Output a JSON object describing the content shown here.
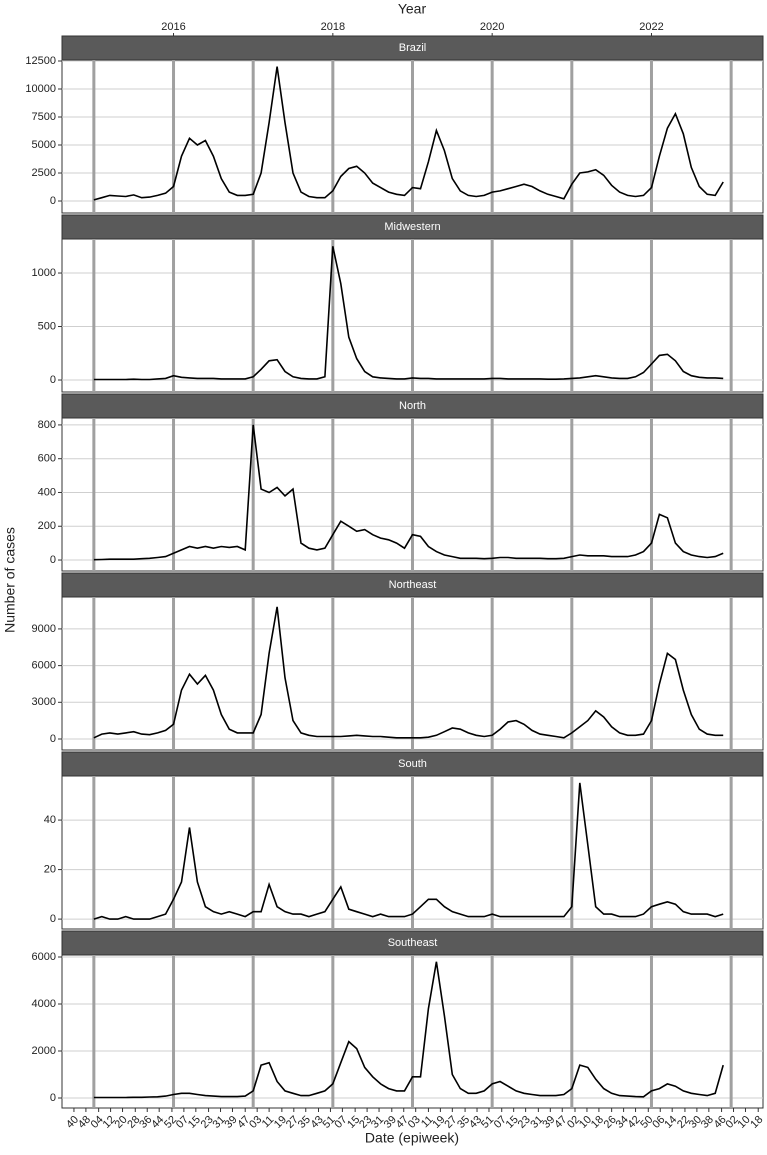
{
  "chart_data": {
    "type": "line",
    "facets": true,
    "top_axis_title": "Year",
    "x_label": "Date (epiweek)",
    "y_label": "Number of cases",
    "x": [
      2015,
      2015.1,
      2015.2,
      2015.3,
      2015.4,
      2015.5,
      2015.6,
      2015.7,
      2015.8,
      2015.9,
      2016,
      2016.1,
      2016.2,
      2016.3,
      2016.4,
      2016.5,
      2016.6,
      2016.7,
      2016.8,
      2016.9,
      2017,
      2017.1,
      2017.2,
      2017.3,
      2017.4,
      2017.5,
      2017.6,
      2017.7,
      2017.8,
      2017.9,
      2018,
      2018.1,
      2018.2,
      2018.3,
      2018.4,
      2018.5,
      2018.6,
      2018.7,
      2018.8,
      2018.9,
      2019,
      2019.1,
      2019.2,
      2019.3,
      2019.4,
      2019.5,
      2019.6,
      2019.7,
      2019.8,
      2019.9,
      2020,
      2020.1,
      2020.2,
      2020.3,
      2020.4,
      2020.5,
      2020.6,
      2020.7,
      2020.8,
      2020.9,
      2021,
      2021.1,
      2021.2,
      2021.3,
      2021.4,
      2021.5,
      2021.6,
      2021.7,
      2021.8,
      2021.9,
      2022,
      2022.1,
      2022.2,
      2022.3,
      2022.4,
      2022.5,
      2022.6,
      2022.7,
      2022.8,
      2022.9
    ],
    "xlim": [
      2014.6,
      2023.4
    ],
    "year_lines": [
      2015,
      2016,
      2017,
      2018,
      2019,
      2020,
      2021,
      2022,
      2023
    ],
    "top_xticks": [
      2016,
      2018,
      2020,
      2022
    ],
    "xticks": [
      {
        "value": 2014.75,
        "label": "40"
      },
      {
        "value": 2014.9,
        "label": "48"
      },
      {
        "value": 2015.06,
        "label": "04"
      },
      {
        "value": 2015.21,
        "label": "12"
      },
      {
        "value": 2015.36,
        "label": "20"
      },
      {
        "value": 2015.52,
        "label": "28"
      },
      {
        "value": 2015.67,
        "label": "36"
      },
      {
        "value": 2015.82,
        "label": "44"
      },
      {
        "value": 2015.98,
        "label": "52"
      },
      {
        "value": 2016.13,
        "label": "07"
      },
      {
        "value": 2016.28,
        "label": "15"
      },
      {
        "value": 2016.44,
        "label": "23"
      },
      {
        "value": 2016.59,
        "label": "31"
      },
      {
        "value": 2016.74,
        "label": "39"
      },
      {
        "value": 2016.9,
        "label": "47"
      },
      {
        "value": 2017.05,
        "label": "03"
      },
      {
        "value": 2017.2,
        "label": "11"
      },
      {
        "value": 2017.36,
        "label": "19"
      },
      {
        "value": 2017.51,
        "label": "27"
      },
      {
        "value": 2017.66,
        "label": "35"
      },
      {
        "value": 2017.82,
        "label": "43"
      },
      {
        "value": 2017.97,
        "label": "51"
      },
      {
        "value": 2018.12,
        "label": "07"
      },
      {
        "value": 2018.28,
        "label": "15"
      },
      {
        "value": 2018.43,
        "label": "23"
      },
      {
        "value": 2018.58,
        "label": "31"
      },
      {
        "value": 2018.74,
        "label": "39"
      },
      {
        "value": 2018.89,
        "label": "47"
      },
      {
        "value": 2019.04,
        "label": "03"
      },
      {
        "value": 2019.2,
        "label": "11"
      },
      {
        "value": 2019.35,
        "label": "19"
      },
      {
        "value": 2019.5,
        "label": "27"
      },
      {
        "value": 2019.66,
        "label": "35"
      },
      {
        "value": 2019.81,
        "label": "43"
      },
      {
        "value": 2019.96,
        "label": "51"
      },
      {
        "value": 2020.12,
        "label": "07"
      },
      {
        "value": 2020.27,
        "label": "15"
      },
      {
        "value": 2020.42,
        "label": "23"
      },
      {
        "value": 2020.58,
        "label": "31"
      },
      {
        "value": 2020.73,
        "label": "39"
      },
      {
        "value": 2020.88,
        "label": "47"
      },
      {
        "value": 2021.04,
        "label": "02"
      },
      {
        "value": 2021.19,
        "label": "10"
      },
      {
        "value": 2021.34,
        "label": "18"
      },
      {
        "value": 2021.5,
        "label": "26"
      },
      {
        "value": 2021.65,
        "label": "34"
      },
      {
        "value": 2021.8,
        "label": "42"
      },
      {
        "value": 2021.96,
        "label": "50"
      },
      {
        "value": 2022.11,
        "label": "06"
      },
      {
        "value": 2022.26,
        "label": "14"
      },
      {
        "value": 2022.42,
        "label": "22"
      },
      {
        "value": 2022.57,
        "label": "30"
      },
      {
        "value": 2022.72,
        "label": "38"
      },
      {
        "value": 2022.88,
        "label": "46"
      },
      {
        "value": 2023.03,
        "label": "02"
      },
      {
        "value": 2023.18,
        "label": "10"
      },
      {
        "value": 2023.34,
        "label": "18"
      }
    ],
    "series": [
      {
        "name": "Brazil",
        "color": "#000000",
        "ylim": [
          -1070,
          12590
        ],
        "yticks": [
          0,
          2500,
          5000,
          7500,
          10000,
          12500
        ],
        "values": [
          100,
          300,
          500,
          450,
          400,
          550,
          300,
          350,
          500,
          700,
          1300,
          4000,
          5600,
          5000,
          5400,
          4000,
          2000,
          800,
          500,
          500,
          600,
          2500,
          7000,
          12000,
          7000,
          2500,
          800,
          400,
          300,
          300,
          900,
          2200,
          2900,
          3100,
          2500,
          1600,
          1200,
          800,
          600,
          500,
          1200,
          1100,
          3500,
          6300,
          4500,
          2000,
          900,
          500,
          400,
          500,
          800,
          900,
          1100,
          1300,
          1500,
          1300,
          900,
          600,
          400,
          200,
          1500,
          2500,
          2600,
          2800,
          2300,
          1400,
          800,
          500,
          400,
          500,
          1200,
          4000,
          6500,
          7800,
          6000,
          3000,
          1300,
          600,
          500,
          1700
        ]
      },
      {
        "name": "Midwestern",
        "color": "#000000",
        "ylim": [
          -112,
          1318
        ],
        "yticks": [
          0,
          500,
          1000
        ],
        "values": [
          5,
          5,
          5,
          5,
          5,
          8,
          5,
          5,
          10,
          15,
          40,
          25,
          20,
          15,
          15,
          15,
          10,
          10,
          10,
          10,
          30,
          100,
          180,
          190,
          80,
          30,
          15,
          10,
          10,
          30,
          1250,
          900,
          400,
          200,
          80,
          30,
          20,
          15,
          10,
          10,
          20,
          15,
          15,
          10,
          10,
          10,
          10,
          10,
          10,
          10,
          15,
          15,
          10,
          10,
          10,
          10,
          10,
          8,
          8,
          10,
          15,
          20,
          30,
          40,
          30,
          20,
          15,
          15,
          30,
          70,
          150,
          230,
          240,
          180,
          80,
          40,
          25,
          20,
          20,
          15
        ]
      },
      {
        "name": "North",
        "color": "#000000",
        "ylim": [
          -65,
          841
        ],
        "yticks": [
          0,
          200,
          400,
          600,
          800
        ],
        "values": [
          2,
          3,
          5,
          5,
          5,
          5,
          8,
          10,
          15,
          20,
          40,
          60,
          80,
          70,
          80,
          70,
          80,
          75,
          80,
          60,
          800,
          420,
          400,
          430,
          380,
          420,
          100,
          70,
          60,
          70,
          150,
          230,
          200,
          170,
          180,
          150,
          130,
          120,
          100,
          70,
          150,
          140,
          80,
          50,
          30,
          20,
          10,
          10,
          10,
          8,
          10,
          15,
          15,
          10,
          10,
          10,
          10,
          8,
          8,
          10,
          20,
          30,
          25,
          25,
          25,
          20,
          20,
          20,
          30,
          50,
          100,
          270,
          250,
          100,
          50,
          30,
          20,
          15,
          20,
          40
        ]
      },
      {
        "name": "Northeast",
        "color": "#000000",
        "ylim": [
          -900,
          11610
        ],
        "yticks": [
          0,
          3000,
          6000,
          9000
        ],
        "values": [
          100,
          400,
          500,
          400,
          500,
          600,
          400,
          350,
          500,
          700,
          1200,
          4000,
          5300,
          4500,
          5200,
          4000,
          2000,
          800,
          500,
          500,
          500,
          2000,
          7000,
          10800,
          5000,
          1500,
          500,
          300,
          200,
          200,
          200,
          200,
          250,
          300,
          250,
          200,
          200,
          150,
          100,
          100,
          100,
          100,
          150,
          300,
          600,
          900,
          800,
          500,
          300,
          200,
          300,
          800,
          1400,
          1500,
          1200,
          700,
          400,
          300,
          200,
          100,
          500,
          1000,
          1500,
          2300,
          1800,
          1000,
          500,
          300,
          300,
          400,
          1500,
          4500,
          7000,
          6500,
          4000,
          2000,
          800,
          400,
          300,
          300
        ]
      },
      {
        "name": "South",
        "color": "#000000",
        "ylim": [
          -4,
          57.8
        ],
        "yticks": [
          0,
          20,
          40
        ],
        "values": [
          0,
          1,
          0,
          0,
          1,
          0,
          0,
          0,
          1,
          2,
          8,
          15,
          37,
          15,
          5,
          3,
          2,
          3,
          2,
          1,
          3,
          3,
          14,
          5,
          3,
          2,
          2,
          1,
          2,
          3,
          8,
          13,
          4,
          3,
          2,
          1,
          2,
          1,
          1,
          1,
          2,
          5,
          8,
          8,
          5,
          3,
          2,
          1,
          1,
          1,
          2,
          1,
          1,
          1,
          1,
          1,
          1,
          1,
          1,
          1,
          5,
          55,
          30,
          5,
          2,
          2,
          1,
          1,
          1,
          2,
          5,
          6,
          7,
          6,
          3,
          2,
          2,
          2,
          1,
          2
        ]
      },
      {
        "name": "Southeast",
        "color": "#000000",
        "ylim": [
          -426,
          6085
        ],
        "yticks": [
          0,
          2000,
          4000,
          6000
        ],
        "values": [
          20,
          20,
          20,
          20,
          20,
          30,
          30,
          40,
          50,
          80,
          150,
          200,
          200,
          150,
          100,
          80,
          60,
          60,
          60,
          80,
          300,
          1400,
          1500,
          700,
          300,
          200,
          100,
          100,
          200,
          300,
          600,
          1500,
          2400,
          2100,
          1300,
          900,
          600,
          400,
          300,
          300,
          900,
          900,
          3800,
          5800,
          3500,
          1000,
          400,
          200,
          200,
          300,
          600,
          700,
          500,
          300,
          200,
          150,
          100,
          100,
          100,
          150,
          400,
          1400,
          1300,
          800,
          400,
          200,
          100,
          80,
          60,
          50,
          300,
          400,
          600,
          500,
          300,
          200,
          150,
          100,
          200,
          1400
        ]
      }
    ]
  }
}
